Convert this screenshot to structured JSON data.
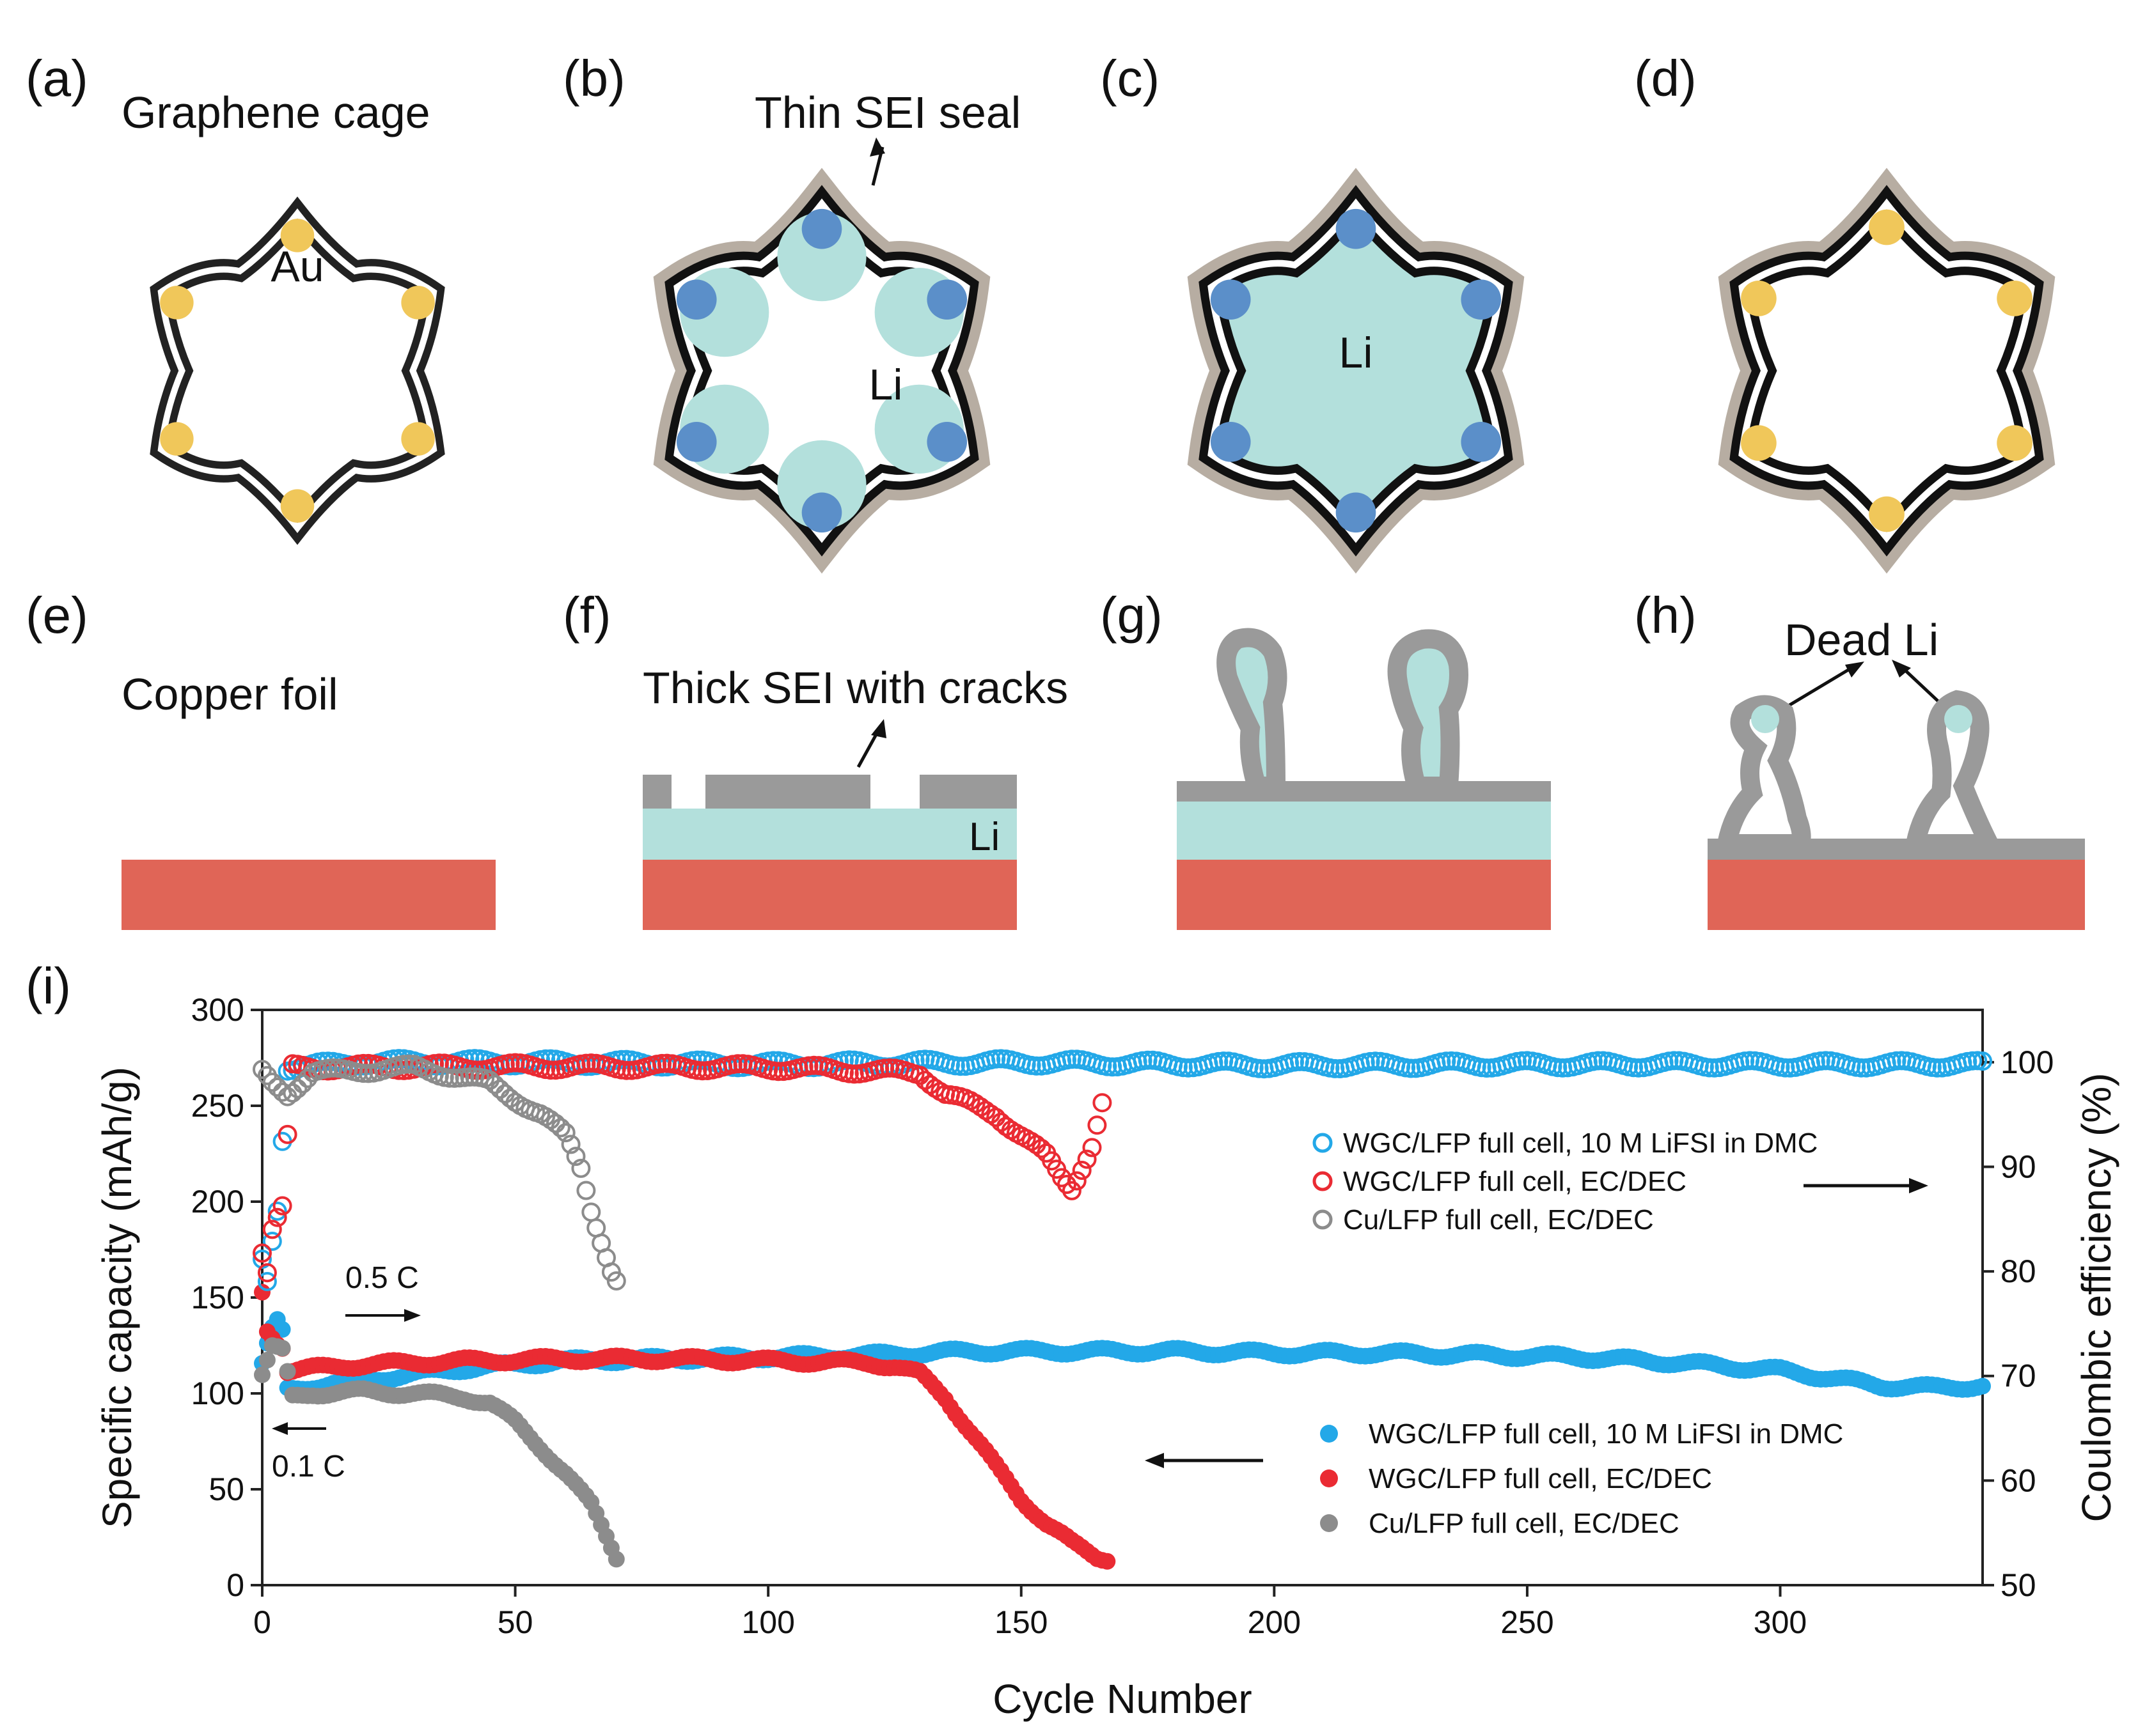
{
  "panels": {
    "a": {
      "letter": "(a)",
      "title": "Graphene cage",
      "center_label": "Au"
    },
    "b": {
      "letter": "(b)",
      "title": "Thin SEI seal",
      "center_label": "Li"
    },
    "c": {
      "letter": "(c)",
      "center_label": "Li"
    },
    "d": {
      "letter": "(d)"
    },
    "e": {
      "letter": "(e)",
      "title": "Copper foil"
    },
    "f": {
      "letter": "(f)",
      "title": "Thick SEI with cracks",
      "li_label": "Li"
    },
    "g": {
      "letter": "(g)"
    },
    "h": {
      "letter": "(h)",
      "title": "Dead Li"
    },
    "i": {
      "letter": "(i)"
    }
  },
  "colors": {
    "copper": "#e06557",
    "lithium": "#b3e0dc",
    "au_particle": "#f0c75a",
    "li_particle": "#5b8fc9",
    "sei": "#b7ada2",
    "sei_gray": "#9a9a9a",
    "cage": "#222222",
    "series_blue": "#23a8e8",
    "series_red": "#ea2b33",
    "series_gray": "#8c8c8c"
  },
  "annotations": {
    "rate_1": "0.5 C",
    "rate_2": "0.1 C"
  },
  "chart_data": {
    "type": "scatter",
    "title": "",
    "xlabel": "Cycle Number",
    "ylabel_left": "Specific capacity (mAh/g)",
    "ylabel_right": "Coulombic efficiency (%)",
    "xlim": [
      0,
      340
    ],
    "ylim_left": [
      0,
      300
    ],
    "ylim_right": [
      50,
      105
    ],
    "xticks": [
      "0",
      "50",
      "100",
      "150",
      "200",
      "250",
      "300"
    ],
    "yticks_left": [
      "0",
      "50",
      "100",
      "150",
      "200",
      "250",
      "300"
    ],
    "yticks_right": [
      "50",
      "60",
      "70",
      "80",
      "90",
      "100"
    ],
    "legend_efficiency": [
      "WGC/LFP full cell, 10 M LiFSI in DMC",
      "WGC/LFP full cell, EC/DEC",
      "Cu/LFP full cell, EC/DEC"
    ],
    "legend_capacity": [
      "WGC/LFP full cell, 10 M LiFSI in DMC",
      "WGC/LFP full cell, EC/DEC",
      "Cu/LFP full cell, EC/DEC"
    ],
    "series": [
      {
        "name": "WGC/LFP full cell, 10 M LiFSI in DMC (capacity)",
        "axis": "left",
        "marker": "filled",
        "color": "#23a8e8",
        "points": [
          [
            0,
            115
          ],
          [
            1,
            125
          ],
          [
            2,
            133
          ],
          [
            3,
            137
          ],
          [
            4,
            132
          ],
          [
            5,
            102
          ],
          [
            10,
            104
          ],
          [
            20,
            107
          ],
          [
            30,
            110
          ],
          [
            40,
            113
          ],
          [
            50,
            115
          ],
          [
            60,
            117
          ],
          [
            80,
            118
          ],
          [
            100,
            119
          ],
          [
            120,
            120
          ],
          [
            140,
            122
          ],
          [
            160,
            122
          ],
          [
            180,
            122
          ],
          [
            200,
            121
          ],
          [
            220,
            121
          ],
          [
            240,
            120
          ],
          [
            260,
            119
          ],
          [
            280,
            116
          ],
          [
            300,
            112
          ],
          [
            310,
            108
          ],
          [
            320,
            104
          ],
          [
            330,
            103
          ],
          [
            340,
            104
          ]
        ]
      },
      {
        "name": "WGC/LFP full cell, EC/DEC (capacity)",
        "axis": "left",
        "marker": "filled",
        "color": "#ea2b33",
        "points": [
          [
            0,
            153
          ],
          [
            1,
            133
          ],
          [
            2,
            130
          ],
          [
            3,
            127
          ],
          [
            4,
            125
          ],
          [
            5,
            112
          ],
          [
            10,
            113
          ],
          [
            20,
            115
          ],
          [
            40,
            117
          ],
          [
            60,
            118
          ],
          [
            80,
            118
          ],
          [
            100,
            117
          ],
          [
            120,
            116
          ],
          [
            125,
            114
          ],
          [
            130,
            110
          ],
          [
            135,
            98
          ],
          [
            140,
            80
          ],
          [
            145,
            62
          ],
          [
            150,
            45
          ],
          [
            155,
            32
          ],
          [
            160,
            22
          ],
          [
            165,
            15
          ],
          [
            167,
            14
          ]
        ]
      },
      {
        "name": "Cu/LFP full cell, EC/DEC (capacity)",
        "axis": "left",
        "marker": "filled",
        "color": "#8c8c8c",
        "points": [
          [
            0,
            110
          ],
          [
            2,
            124
          ],
          [
            4,
            122
          ],
          [
            6,
            98
          ],
          [
            10,
            100
          ],
          [
            20,
            101
          ],
          [
            30,
            100
          ],
          [
            40,
            98
          ],
          [
            45,
            95
          ],
          [
            50,
            85
          ],
          [
            55,
            72
          ],
          [
            60,
            58
          ],
          [
            65,
            42
          ],
          [
            68,
            26
          ],
          [
            70,
            15
          ]
        ]
      },
      {
        "name": "WGC/LFP full cell, 10 M LiFSI in DMC (efficiency)",
        "axis": "right",
        "marker": "open",
        "color": "#23a8e8",
        "points": [
          [
            0,
            81
          ],
          [
            1,
            79
          ],
          [
            2,
            83
          ],
          [
            3,
            86
          ],
          [
            5,
            99.5
          ],
          [
            20,
            100
          ],
          [
            50,
            100
          ],
          [
            100,
            99.8
          ],
          [
            150,
            100
          ],
          [
            200,
            99.7
          ],
          [
            250,
            99.8
          ],
          [
            300,
            99.8
          ],
          [
            340,
            99.8
          ]
        ]
      },
      {
        "name": "WGC/LFP full cell, EC/DEC (efficiency)",
        "axis": "right",
        "marker": "open",
        "color": "#ea2b33",
        "points": [
          [
            0,
            82
          ],
          [
            1,
            80
          ],
          [
            2,
            84
          ],
          [
            4,
            86
          ],
          [
            6,
            99.5
          ],
          [
            50,
            99.6
          ],
          [
            100,
            99.5
          ],
          [
            130,
            99
          ],
          [
            135,
            97
          ],
          [
            140,
            96
          ],
          [
            145,
            95
          ],
          [
            150,
            93
          ],
          [
            155,
            91
          ],
          [
            158,
            89
          ],
          [
            160,
            88
          ],
          [
            162,
            90
          ],
          [
            164,
            92
          ],
          [
            166,
            96
          ]
        ]
      },
      {
        "name": "Cu/LFP full cell, EC/DEC (efficiency)",
        "axis": "right",
        "marker": "open",
        "color": "#8c8c8c",
        "points": [
          [
            0,
            99
          ],
          [
            2,
            98
          ],
          [
            5,
            97
          ],
          [
            10,
            99
          ],
          [
            30,
            99.5
          ],
          [
            45,
            98
          ],
          [
            50,
            96.5
          ],
          [
            55,
            95
          ],
          [
            60,
            93
          ],
          [
            63,
            90
          ],
          [
            65,
            86
          ],
          [
            67,
            83
          ],
          [
            69,
            80
          ],
          [
            70,
            79
          ]
        ]
      }
    ]
  }
}
